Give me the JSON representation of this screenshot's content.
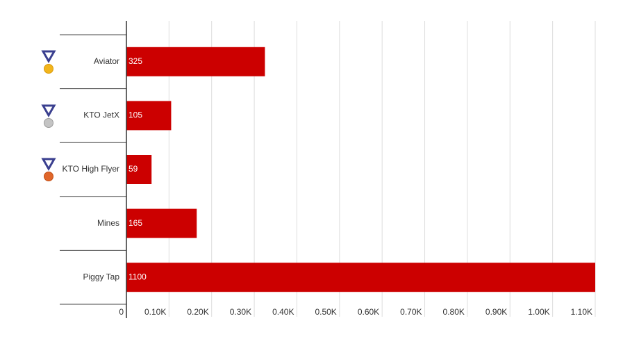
{
  "chart_data": {
    "type": "hbar",
    "categories": [
      "Aviator",
      "KTO JetX",
      "KTO High Flyer",
      "Mines",
      "Piggy Tap"
    ],
    "values": [
      325,
      105,
      59,
      165,
      1100
    ],
    "color": "#cc0000",
    "xlim": [
      0,
      1100
    ],
    "xticks": [
      0,
      {
        "value": 100,
        "label": "0.10K"
      },
      {
        "value": 200,
        "label": "0.20K"
      },
      {
        "value": 300,
        "label": "0.30K"
      },
      {
        "value": 400,
        "label": "0.40K"
      },
      {
        "value": 500,
        "label": "0.50K"
      },
      {
        "value": 600,
        "label": "0.60K"
      },
      {
        "value": 700,
        "label": "0.70K"
      },
      {
        "value": 800,
        "label": "0.80K"
      },
      {
        "value": 900,
        "label": "0.90K"
      },
      {
        "value": 1000,
        "label": "1.00K"
      },
      {
        "value": 1100,
        "label": "1.10K"
      }
    ],
    "grid": true
  }
}
